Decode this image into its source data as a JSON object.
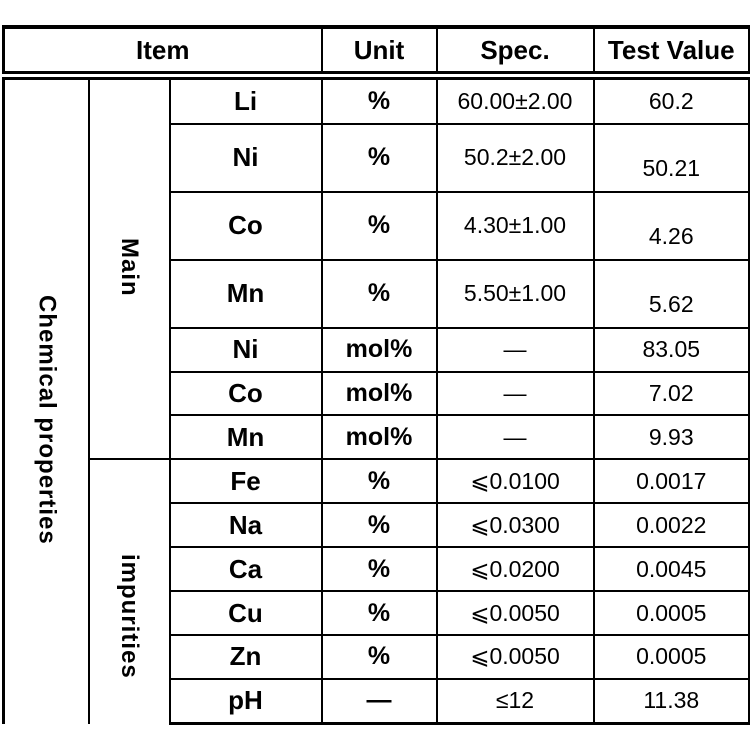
{
  "header": {
    "item": "Item",
    "unit": "Unit",
    "spec": "Spec.",
    "test_value": "Test Value"
  },
  "groups": {
    "category": "Chemical properties",
    "main": "Main",
    "impurities": "impurities"
  },
  "table": {
    "rows": [
      {
        "element": "Li",
        "unit": "%",
        "spec": "60.00±2.00",
        "value": "60.2",
        "section": "main",
        "value_low": false
      },
      {
        "element": "Ni",
        "unit": "%",
        "spec": "50.2±2.00",
        "value": "50.21",
        "section": "main",
        "value_low": true
      },
      {
        "element": "Co",
        "unit": "%",
        "spec": "4.30±1.00",
        "value": "4.26",
        "section": "main",
        "value_low": true
      },
      {
        "element": "Mn",
        "unit": "%",
        "spec": "5.50±1.00",
        "value": "5.62",
        "section": "main",
        "value_low": true
      },
      {
        "element": "Ni",
        "unit": "mol%",
        "spec": "—",
        "value": "83.05",
        "section": "main",
        "value_low": false
      },
      {
        "element": "Co",
        "unit": "mol%",
        "spec": "—",
        "value": "7.02",
        "section": "main",
        "value_low": false
      },
      {
        "element": "Mn",
        "unit": "mol%",
        "spec": "—",
        "value": "9.93",
        "section": "main",
        "value_low": false
      },
      {
        "element": "Fe",
        "unit": "%",
        "spec": "⩽0.0100",
        "value": "0.0017",
        "section": "impurities",
        "value_low": false
      },
      {
        "element": "Na",
        "unit": "%",
        "spec": "⩽0.0300",
        "value": "0.0022",
        "section": "impurities",
        "value_low": false
      },
      {
        "element": "Ca",
        "unit": "%",
        "spec": "⩽0.0200",
        "value": "0.0045",
        "section": "impurities",
        "value_low": false
      },
      {
        "element": "Cu",
        "unit": "%",
        "spec": "⩽0.0050",
        "value": "0.0005",
        "section": "impurities",
        "value_low": false
      },
      {
        "element": "Zn",
        "unit": "%",
        "spec": "⩽0.0050",
        "value": "0.0005",
        "section": "impurities",
        "value_low": false
      },
      {
        "element": "pH",
        "unit": "—",
        "spec": "≤12",
        "value": "11.38",
        "section": "impurities",
        "value_low": false
      }
    ]
  },
  "colors": {
    "border": "#000000",
    "background": "#ffffff",
    "text": "#000000"
  }
}
